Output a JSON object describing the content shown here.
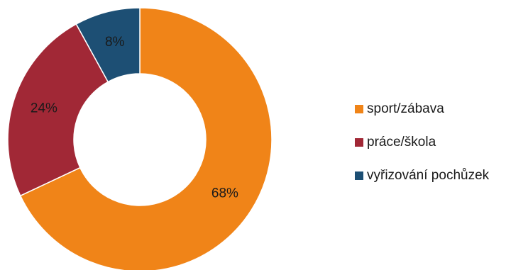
{
  "chart_data": {
    "type": "pie",
    "variant": "donut",
    "title": "",
    "slices": [
      {
        "label": "sport/zábava",
        "value": 68,
        "display": "68%",
        "color": "#F08418"
      },
      {
        "label": "práce/škola",
        "value": 24,
        "display": "24%",
        "color": "#A12836"
      },
      {
        "label": "vyřizování pochůzek",
        "value": 8,
        "display": "8%",
        "color": "#1D4F74"
      }
    ],
    "legend": {
      "placement": "right",
      "items": [
        {
          "label": "sport/zábava",
          "color": "#F08418"
        },
        {
          "label": "práce/škola",
          "color": "#A12836"
        },
        {
          "label": "vyřizování pochůzek",
          "color": "#1D4F74"
        }
      ]
    }
  }
}
